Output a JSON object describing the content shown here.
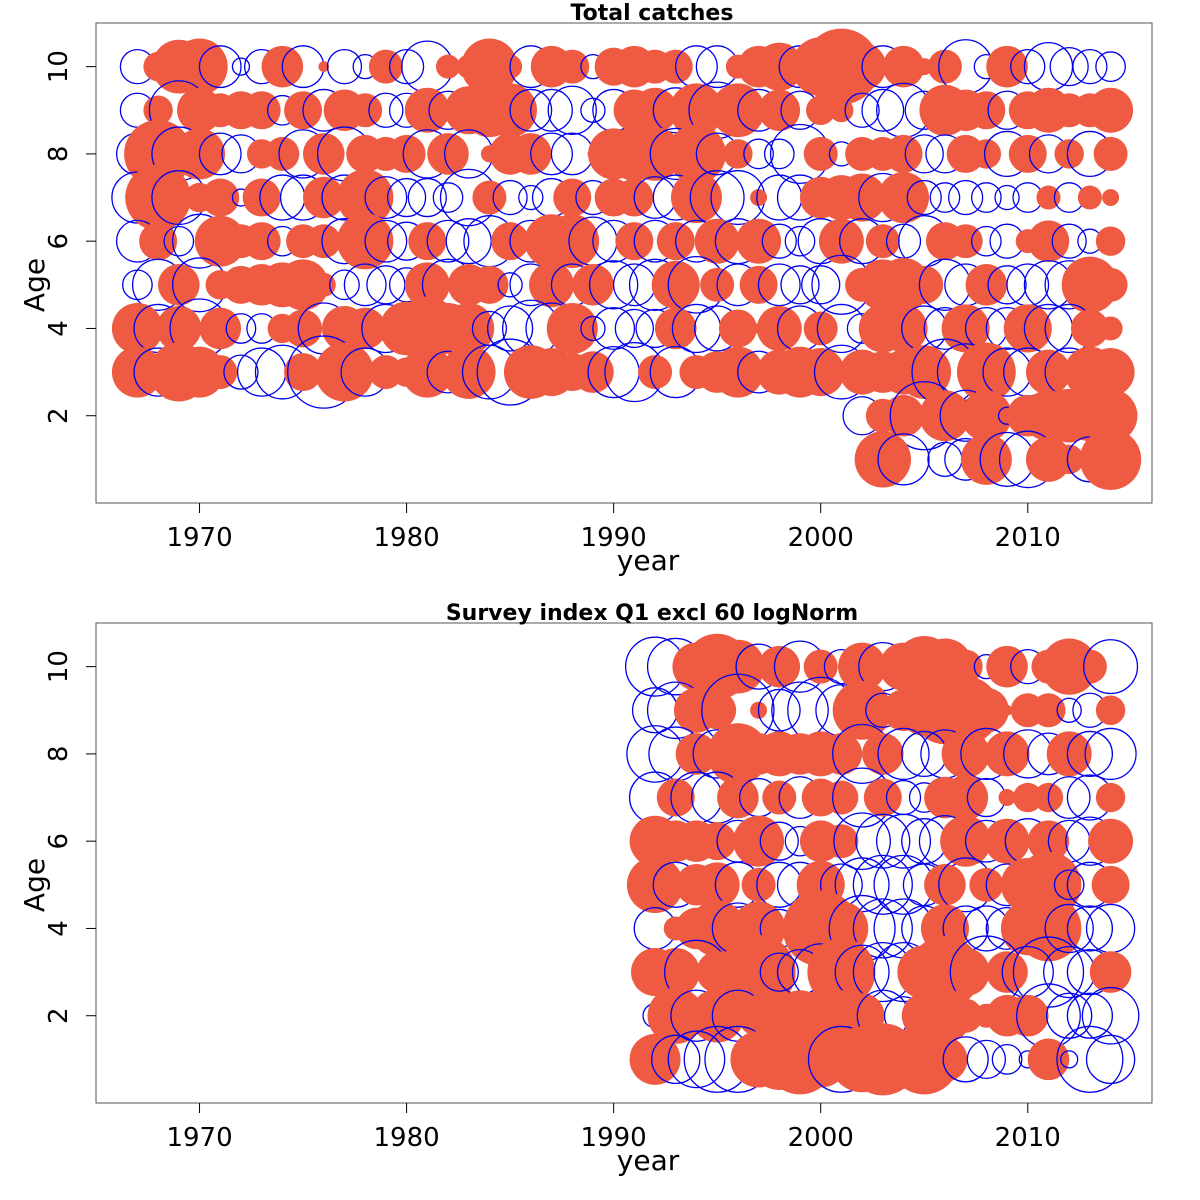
{
  "colors": {
    "positive": "#ef5a42",
    "negative": "#0000ee"
  },
  "chart_data": [
    {
      "type": "scatter",
      "subtype": "bubble",
      "title": "Total catches",
      "xlabel": "year",
      "ylabel": "Age",
      "xlim": [
        1965,
        2016
      ],
      "ylim": [
        0,
        11
      ],
      "xticks": [
        1970,
        1980,
        1990,
        2000,
        2010
      ],
      "yticks": [
        2,
        4,
        6,
        8,
        10
      ],
      "grid": false,
      "legend": "none",
      "years": [
        1967,
        1968,
        1969,
        1970,
        1971,
        1972,
        1973,
        1974,
        1975,
        1976,
        1977,
        1978,
        1979,
        1980,
        1981,
        1982,
        1983,
        1984,
        1985,
        1986,
        1987,
        1988,
        1989,
        1990,
        1991,
        1992,
        1993,
        1994,
        1995,
        1996,
        1997,
        1998,
        1999,
        2000,
        2001,
        2002,
        2003,
        2004,
        2005,
        2006,
        2007,
        2008,
        2009,
        2010,
        2011,
        2012,
        2013,
        2014
      ],
      "series": [
        {
          "age": 10,
          "values": [
            -0.2,
            0.15,
            0.5,
            0.55,
            -0.3,
            -0.05,
            -0.2,
            0.3,
            -0.3,
            0.02,
            -0.2,
            -0.1,
            0.2,
            -0.2,
            -0.45,
            0.1,
            0.1,
            0.55,
            0.1,
            -0.3,
            0.3,
            0.2,
            -0.1,
            0.25,
            0.3,
            0.2,
            0.2,
            -0.3,
            -0.3,
            0.1,
            0.3,
            0.4,
            -0.3,
            0.6,
            1.0,
            0.4,
            -0.3,
            0.3,
            0.05,
            0.2,
            -0.5,
            -0.1,
            0.3,
            -0.2,
            -0.4,
            -0.25,
            -0.2,
            -0.15
          ]
        },
        {
          "age": 9,
          "values": [
            -0.2,
            0.15,
            -0.6,
            0.35,
            0.2,
            0.25,
            0.25,
            -0.15,
            0.25,
            -0.3,
            0.3,
            0.2,
            -0.2,
            -0.2,
            0.35,
            -0.25,
            0.4,
            0.5,
            0.5,
            -0.3,
            -0.3,
            -0.4,
            -0.1,
            -0.3,
            0.3,
            0.35,
            -0.35,
            0.5,
            -0.55,
            0.5,
            -0.3,
            0.3,
            -0.25,
            0.15,
            0.1,
            -0.2,
            -0.3,
            -0.5,
            -0.25,
            0.45,
            0.3,
            0.25,
            -0.25,
            0.25,
            0.35,
            0.2,
            0.2,
            0.35
          ]
        },
        {
          "age": 8,
          "values": [
            -0.3,
            0.8,
            -0.5,
            0.45,
            -0.3,
            -0.25,
            0.15,
            0.2,
            -0.4,
            0.3,
            -0.5,
            0.25,
            0.2,
            0.25,
            -0.4,
            0.3,
            -0.4,
            0.05,
            0.3,
            0.3,
            -0.3,
            -0.3,
            0.02,
            0.45,
            0.5,
            0.5,
            -0.45,
            0.6,
            -0.3,
            0.15,
            -0.15,
            -0.15,
            -0.6,
            0.2,
            -0.1,
            0.2,
            0.2,
            0.25,
            -0.25,
            -0.25,
            0.25,
            0.15,
            -0.35,
            0.25,
            -0.25,
            0.15,
            -0.35,
            0.2
          ]
        },
        {
          "age": 7,
          "values": [
            -0.45,
            0.75,
            -0.5,
            0.15,
            0.25,
            -0.05,
            0.25,
            -0.35,
            -0.35,
            0.3,
            -0.35,
            0.55,
            -0.3,
            -0.25,
            -0.25,
            -0.15,
            -0.55,
            0.2,
            -0.2,
            -0.1,
            -0.25,
            0.25,
            -0.2,
            0.25,
            0.25,
            -0.3,
            -0.35,
            0.45,
            -0.5,
            -0.5,
            0.05,
            -0.35,
            -0.35,
            0.3,
            0.35,
            0.4,
            -0.4,
            0.45,
            -0.2,
            -0.15,
            -0.2,
            -0.15,
            -0.1,
            -0.15,
            0.1,
            -0.15,
            0.1,
            0.05
          ]
        },
        {
          "age": 6,
          "values": [
            -0.3,
            0.25,
            -0.15,
            -0.5,
            0.45,
            0.2,
            0.25,
            -0.15,
            0.2,
            0.2,
            -0.35,
            0.55,
            -0.3,
            -0.25,
            0.25,
            -0.3,
            -0.35,
            -0.45,
            0.25,
            -0.3,
            0.5,
            0.5,
            -0.4,
            -0.3,
            0.25,
            -0.3,
            0.25,
            -0.3,
            0.35,
            -0.35,
            0.35,
            -0.2,
            -0.15,
            -0.35,
            0.35,
            -0.35,
            0.2,
            -0.2,
            -0.45,
            0.25,
            0.2,
            -0.15,
            -0.2,
            0.1,
            0.3,
            -0.2,
            -0.1,
            0.15
          ]
        },
        {
          "age": 5,
          "values": [
            -0.15,
            -0.45,
            0.3,
            -0.5,
            0.15,
            0.25,
            0.3,
            0.35,
            0.45,
            0.1,
            -0.15,
            -0.3,
            -0.25,
            -0.2,
            0.35,
            -0.45,
            0.3,
            0.25,
            -0.1,
            -0.3,
            0.35,
            -0.3,
            0.3,
            -0.4,
            -0.3,
            -0.45,
            0.4,
            -0.55,
            0.2,
            -0.3,
            0.25,
            -0.3,
            -0.25,
            -0.25,
            -0.6,
            0.2,
            0.45,
            0.5,
            0.25,
            -0.45,
            -0.3,
            0.3,
            -0.25,
            -0.3,
            -0.4,
            -0.4,
            0.55,
            0.2
          ]
        },
        {
          "age": 4,
          "values": [
            0.45,
            -0.4,
            0.35,
            -0.6,
            0.3,
            -0.15,
            -0.15,
            0.15,
            0.25,
            -0.45,
            0.35,
            0.3,
            -0.4,
            0.5,
            0.7,
            0.45,
            0.45,
            -0.2,
            -0.35,
            -0.55,
            -0.45,
            0.45,
            -0.1,
            -0.3,
            -0.25,
            -0.25,
            0.3,
            -0.4,
            -0.35,
            0.25,
            0.02,
            0.35,
            -0.35,
            0.2,
            -0.4,
            -0.15,
            0.4,
            0.4,
            -0.35,
            -0.3,
            0.4,
            -0.3,
            -0.3,
            0.4,
            -0.4,
            -0.4,
            0.25,
            0.1
          ]
        },
        {
          "age": 3,
          "values": [
            0.45,
            -0.4,
            0.6,
            0.45,
            0.2,
            -0.2,
            -0.4,
            -0.5,
            0.25,
            -0.9,
            0.6,
            -0.4,
            0.2,
            0.15,
            0.45,
            -0.3,
            0.5,
            -0.5,
            -0.75,
            0.5,
            0.4,
            0.25,
            0.3,
            -0.45,
            -0.6,
            0.2,
            -0.45,
            0.2,
            0.3,
            0.45,
            -0.3,
            0.35,
            0.45,
            0.4,
            -0.5,
            0.35,
            0.3,
            0.35,
            0.5,
            -0.75,
            -0.55,
            0.6,
            -0.4,
            -0.4,
            0.35,
            -0.4,
            0.45,
            0.4
          ]
        },
        {
          "age": 2,
          "values": [
            null,
            null,
            null,
            null,
            null,
            null,
            null,
            null,
            null,
            null,
            null,
            null,
            null,
            null,
            null,
            null,
            null,
            null,
            null,
            null,
            null,
            null,
            null,
            null,
            null,
            null,
            null,
            null,
            null,
            null,
            null,
            null,
            null,
            null,
            null,
            -0.25,
            0.2,
            0.3,
            -0.8,
            0.45,
            -0.45,
            0.45,
            -0.05,
            0.3,
            0.45,
            0.5,
            0.45,
            0.5
          ]
        },
        {
          "age": 1,
          "values": [
            null,
            null,
            null,
            null,
            null,
            null,
            null,
            null,
            null,
            null,
            null,
            null,
            null,
            null,
            null,
            null,
            null,
            null,
            null,
            null,
            null,
            null,
            null,
            null,
            null,
            null,
            null,
            null,
            null,
            null,
            null,
            null,
            null,
            null,
            null,
            null,
            0.55,
            -0.45,
            null,
            -0.2,
            -0.3,
            0.45,
            -0.5,
            -0.55,
            0.35,
            0.15,
            -0.35,
            0.65
          ]
        }
      ]
    },
    {
      "type": "scatter",
      "subtype": "bubble",
      "title": "Survey index Q1 excl 60 logNorm",
      "xlabel": "year",
      "ylabel": "Age",
      "xlim": [
        1965,
        2016
      ],
      "ylim": [
        0,
        11
      ],
      "xticks": [
        1970,
        1980,
        1990,
        2000,
        2010
      ],
      "yticks": [
        2,
        4,
        6,
        8,
        10
      ],
      "grid": false,
      "legend": "none",
      "years": [
        1992,
        1993,
        1994,
        1995,
        1996,
        1997,
        1998,
        1999,
        2000,
        2001,
        2002,
        2003,
        2004,
        2005,
        2006,
        2007,
        2008,
        2009,
        2010,
        2011,
        2012,
        2013,
        2014
      ],
      "series": [
        {
          "age": 10,
          "values": [
            -0.6,
            -0.55,
            0.4,
            0.75,
            0.5,
            -0.35,
            0.3,
            -0.45,
            0.2,
            -0.2,
            0.4,
            -0.4,
            0.4,
            0.65,
            0.55,
            0.2,
            -0.1,
            0.3,
            -0.2,
            0.2,
            0.55,
            0.2,
            -0.5
          ]
        },
        {
          "age": 9,
          "values": [
            -0.35,
            -0.55,
            0.35,
            0.25,
            -0.9,
            0.05,
            -0.3,
            -0.55,
            -0.75,
            -0.45,
            0.6,
            -0.2,
            0.3,
            0.45,
            0.8,
            0.8,
            0.35,
            0.02,
            0.2,
            0.2,
            -0.1,
            -0.2,
            0.15
          ]
        },
        {
          "age": 8,
          "values": [
            -0.55,
            -0.5,
            0.3,
            -0.4,
            0.65,
            0.3,
            0.35,
            0.3,
            0.35,
            0.3,
            -0.6,
            0.3,
            -0.45,
            -0.35,
            -0.4,
            0.4,
            -0.45,
            0.35,
            -0.4,
            -0.3,
            0.35,
            -0.35,
            -0.45
          ]
        },
        {
          "age": 7,
          "values": [
            -0.45,
            0.25,
            -0.45,
            -0.45,
            0.3,
            -0.25,
            0.2,
            -0.3,
            0.25,
            0.2,
            -0.6,
            0.25,
            -0.2,
            -0.15,
            0.3,
            0.35,
            -0.25,
            0.05,
            0.15,
            0.15,
            -0.3,
            -0.35,
            0.15
          ]
        },
        {
          "age": 6,
          "values": [
            0.45,
            0.3,
            0.3,
            0.25,
            -0.3,
            0.45,
            -0.25,
            -0.15,
            0.3,
            0.2,
            -0.55,
            -0.5,
            -0.5,
            -0.35,
            -0.45,
            0.45,
            -0.3,
            0.35,
            -0.35,
            0.3,
            -0.3,
            -0.4,
            0.35
          ]
        },
        {
          "age": 5,
          "values": [
            0.55,
            -0.35,
            0.3,
            0.35,
            -0.35,
            0.2,
            -0.35,
            -0.35,
            0.4,
            -0.3,
            -0.5,
            -0.6,
            -0.6,
            -0.3,
            0.3,
            -0.5,
            0.2,
            -0.3,
            0.5,
            0.75,
            -0.15,
            -0.35,
            0.25
          ]
        },
        {
          "age": 4,
          "values": [
            -0.3,
            0.1,
            0.3,
            0.55,
            -0.45,
            0.5,
            -0.25,
            0.2,
            1.0,
            0.5,
            -0.75,
            -0.6,
            -0.6,
            -0.35,
            0.4,
            -0.35,
            -0.35,
            -0.3,
            0.5,
            0.75,
            -0.4,
            -0.35,
            -0.4
          ]
        },
        {
          "age": 3,
          "values": [
            0.4,
            0.4,
            -0.7,
            0.3,
            0.4,
            0.95,
            -0.25,
            -0.35,
            -0.55,
            0.8,
            -0.5,
            -0.6,
            -0.6,
            0.5,
            0.9,
            0.4,
            -0.9,
            0.3,
            -0.45,
            -0.85,
            -0.45,
            -0.35,
            0.3
          ]
        },
        {
          "age": 2,
          "values": [
            -0.1,
            0.55,
            -0.45,
            0.5,
            -0.45,
            0.3,
            0.2,
            0.45,
            0.45,
            0.45,
            0.35,
            -0.45,
            -0.25,
            0.35,
            0.5,
            0.2,
            0.1,
            0.3,
            0.3,
            -0.7,
            -0.35,
            -0.35,
            -0.55
          ]
        },
        {
          "age": 1,
          "values": [
            0.45,
            -0.4,
            -0.55,
            -0.75,
            -0.75,
            0.55,
            0.65,
            0.85,
            0.55,
            -0.75,
            0.75,
            0.9,
            0.6,
            0.85,
            0.35,
            -0.35,
            -0.25,
            -0.15,
            -0.05,
            0.3,
            -0.05,
            -0.75,
            -0.4
          ]
        }
      ]
    }
  ]
}
